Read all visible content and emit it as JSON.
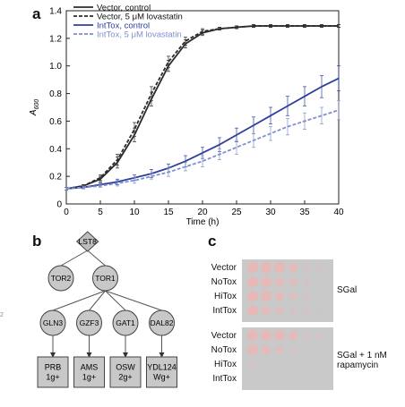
{
  "panel_a": {
    "letter": "a",
    "chart_data": {
      "type": "line",
      "xlabel": "Time (h)",
      "ylabel": "A600",
      "xlim": [
        0,
        40
      ],
      "ylim": [
        0,
        1.4
      ],
      "xticks": [
        0,
        5,
        10,
        15,
        20,
        25,
        30,
        35,
        40
      ],
      "yticks": [
        0,
        0.2,
        0.4,
        0.6,
        0.8,
        1.0,
        1.2,
        1.4
      ],
      "ytick_labels": [
        "0",
        "0.2",
        "0.4",
        "0.6",
        "0.8",
        "1.0",
        "1.2",
        "1.4"
      ],
      "error_bars": true,
      "legend_position": "top-left",
      "series": [
        {
          "name": "Vector, control",
          "color": "#2b2b2b",
          "dash": "solid",
          "x": [
            0,
            2.5,
            5,
            7.5,
            10,
            12.5,
            15,
            17.5,
            20,
            22.5,
            25,
            27.5,
            30,
            32.5,
            35,
            37.5,
            40
          ],
          "y": [
            0.11,
            0.13,
            0.18,
            0.3,
            0.5,
            0.76,
            1.0,
            1.16,
            1.24,
            1.27,
            1.28,
            1.29,
            1.29,
            1.29,
            1.29,
            1.29,
            1.29
          ],
          "err": [
            0.01,
            0.01,
            0.02,
            0.04,
            0.05,
            0.05,
            0.04,
            0.03,
            0.02,
            0.01,
            0.01,
            0.01,
            0.01,
            0.01,
            0.01,
            0.01,
            0.01
          ]
        },
        {
          "name": "Vector, 5 μM lovastatin",
          "color": "#2b2b2b",
          "dash": "dashed",
          "x": [
            0,
            2.5,
            5,
            7.5,
            10,
            12.5,
            15,
            17.5,
            20,
            22.5,
            25,
            27.5,
            30,
            32.5,
            35,
            37.5,
            40
          ],
          "y": [
            0.11,
            0.13,
            0.19,
            0.32,
            0.54,
            0.8,
            1.03,
            1.18,
            1.25,
            1.27,
            1.28,
            1.29,
            1.29,
            1.29,
            1.29,
            1.29,
            1.29
          ],
          "err": [
            0.01,
            0.01,
            0.02,
            0.04,
            0.05,
            0.05,
            0.04,
            0.03,
            0.02,
            0.01,
            0.01,
            0.01,
            0.01,
            0.01,
            0.01,
            0.01,
            0.01
          ]
        },
        {
          "name": "IntTox, control",
          "color": "#2f3f9a",
          "dash": "solid",
          "x": [
            0,
            2.5,
            5,
            7.5,
            10,
            12.5,
            15,
            17.5,
            20,
            22.5,
            25,
            27.5,
            30,
            32.5,
            35,
            37.5,
            40
          ],
          "y": [
            0.11,
            0.12,
            0.14,
            0.16,
            0.19,
            0.22,
            0.26,
            0.31,
            0.37,
            0.43,
            0.5,
            0.57,
            0.64,
            0.71,
            0.78,
            0.85,
            0.91
          ],
          "err": [
            0.01,
            0.01,
            0.01,
            0.02,
            0.02,
            0.03,
            0.03,
            0.04,
            0.04,
            0.05,
            0.05,
            0.06,
            0.06,
            0.07,
            0.07,
            0.08,
            0.09
          ]
        },
        {
          "name": "IntTox, 5 μM lovastatin",
          "color": "#7f8fd0",
          "dash": "dashed",
          "x": [
            0,
            2.5,
            5,
            7.5,
            10,
            12.5,
            15,
            17.5,
            20,
            22.5,
            25,
            27.5,
            30,
            32.5,
            35,
            37.5,
            40
          ],
          "y": [
            0.11,
            0.12,
            0.13,
            0.15,
            0.17,
            0.2,
            0.23,
            0.27,
            0.31,
            0.36,
            0.41,
            0.46,
            0.51,
            0.56,
            0.6,
            0.64,
            0.68
          ],
          "err": [
            0.01,
            0.01,
            0.01,
            0.02,
            0.02,
            0.02,
            0.03,
            0.03,
            0.04,
            0.04,
            0.05,
            0.05,
            0.05,
            0.06,
            0.06,
            0.06,
            0.07
          ]
        }
      ]
    }
  },
  "panel_b": {
    "letter": "b",
    "nodes": [
      {
        "id": "LST8",
        "label": "LST8",
        "shape": "diamond"
      },
      {
        "id": "TOR2",
        "label": "TOR2",
        "shape": "circle"
      },
      {
        "id": "TOR1",
        "label": "TOR1",
        "shape": "circle"
      },
      {
        "id": "GLN3",
        "label": "GLN3",
        "shape": "circle"
      },
      {
        "id": "GZF3",
        "label": "GZF3",
        "shape": "circle"
      },
      {
        "id": "GAT1",
        "label": "GAT1",
        "shape": "circle"
      },
      {
        "id": "DAL82",
        "label": "DAL82",
        "shape": "circle"
      },
      {
        "id": "PRB",
        "label": [
          "PRB",
          "1g+"
        ],
        "shape": "square"
      },
      {
        "id": "AMS",
        "label": [
          "AMS",
          "1g+"
        ],
        "shape": "square"
      },
      {
        "id": "OSW",
        "label": [
          "OSW",
          "2g+"
        ],
        "shape": "square"
      },
      {
        "id": "YDL124",
        "label": [
          "YDL124",
          "Wg+"
        ],
        "shape": "square"
      }
    ],
    "edges": [
      {
        "from": "LST8",
        "to": "TOR2",
        "arrow": false
      },
      {
        "from": "LST8",
        "to": "TOR1",
        "arrow": false
      },
      {
        "from": "TOR1",
        "to": "GLN3",
        "arrow": false
      },
      {
        "from": "TOR1",
        "to": "GZF3",
        "arrow": false
      },
      {
        "from": "TOR1",
        "to": "GAT1",
        "arrow": false
      },
      {
        "from": "TOR1",
        "to": "DAL82",
        "arrow": false
      },
      {
        "from": "GLN3",
        "to": "PRB",
        "arrow": true
      },
      {
        "from": "GZF3",
        "to": "AMS",
        "arrow": true
      },
      {
        "from": "GAT1",
        "to": "OSW",
        "arrow": true
      },
      {
        "from": "DAL82",
        "to": "YDL124",
        "arrow": true
      }
    ]
  },
  "panel_c": {
    "letter": "c",
    "plates": [
      {
        "condition": "SGal",
        "rows": [
          "Vector",
          "NoTox",
          "HiTox",
          "IntTox"
        ],
        "growth": [
          [
            1,
            1,
            0.9,
            0.7,
            0.3,
            0.15
          ],
          [
            1,
            0.95,
            0.85,
            0.6,
            0.25,
            0.1
          ],
          [
            1,
            0.9,
            0.75,
            0.45,
            0.2,
            0.1
          ],
          [
            1,
            0.85,
            0.6,
            0.35,
            0.15,
            0.05
          ]
        ]
      },
      {
        "condition": "SGal + 1 nM rapamycin",
        "condition_lines": [
          "SGal + 1 nM",
          "rapamycin"
        ],
        "rows": [
          "Vector",
          "NoTox",
          "HiTox",
          "IntTox"
        ],
        "growth": [
          [
            1,
            1,
            0.9,
            0.7,
            0.3,
            0.15
          ],
          [
            0.9,
            0.85,
            0.6,
            0.3,
            0.1,
            0.0
          ],
          [
            0.2,
            0.05,
            0.0,
            0.0,
            0.0,
            0.0
          ],
          [
            0.08,
            0.0,
            0.0,
            0.0,
            0.0,
            0.0
          ]
        ]
      }
    ]
  },
  "colors": {
    "spot": "#e8b8b8",
    "plate": "#c9c9c9"
  }
}
